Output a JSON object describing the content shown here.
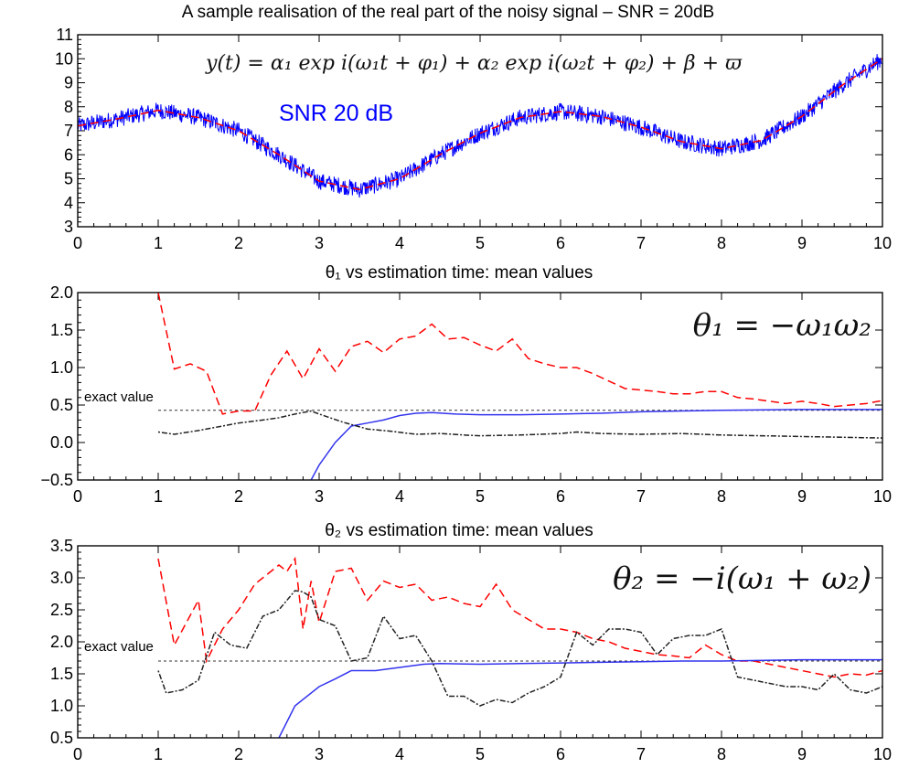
{
  "chart_data": [
    {
      "type": "line",
      "title": "A sample realisation of the real part of the noisy signal – SNR = 20dB",
      "formula": "y(t) = α₁ exp i(ω₁t + φ₁) + α₂ exp i(ω₂t + φ₂) + β + ϖ",
      "annotation": "SNR 20 dB",
      "xlim": [
        0,
        10
      ],
      "ylim": [
        3,
        11
      ],
      "xticks": [
        "0",
        "1",
        "2",
        "3",
        "4",
        "5",
        "6",
        "7",
        "8",
        "9",
        "10"
      ],
      "yticks": [
        "3",
        "4",
        "5",
        "6",
        "7",
        "8",
        "9",
        "10",
        "11"
      ],
      "noise_amplitude": 0.35,
      "series": [
        {
          "color": "#0000ff",
          "style": "solid-noisy",
          "x": [
            0,
            0.5,
            1.0,
            1.5,
            2.0,
            2.5,
            3.0,
            3.5,
            4.0,
            4.5,
            5.0,
            5.5,
            6.0,
            6.5,
            7.0,
            7.5,
            8.0,
            8.5,
            9.0,
            9.5,
            10.0
          ],
          "y": [
            7.2,
            7.5,
            7.85,
            7.55,
            7.0,
            6.0,
            4.9,
            4.55,
            5.0,
            6.0,
            6.9,
            7.55,
            7.8,
            7.6,
            7.15,
            6.55,
            6.25,
            6.6,
            7.6,
            8.9,
            10.0
          ]
        },
        {
          "color": "#ff0000",
          "style": "dashed",
          "x": [
            0,
            0.5,
            1.0,
            1.5,
            2.0,
            2.5,
            3.0,
            3.5,
            4.0,
            4.5,
            5.0,
            5.5,
            6.0,
            6.5,
            7.0,
            7.5,
            8.0,
            8.5,
            9.0,
            9.5,
            10.0
          ],
          "y": [
            7.2,
            7.5,
            7.85,
            7.55,
            7.0,
            6.0,
            4.9,
            4.55,
            5.0,
            6.0,
            6.9,
            7.55,
            7.8,
            7.6,
            7.15,
            6.55,
            6.25,
            6.6,
            7.6,
            8.9,
            10.0
          ]
        }
      ]
    },
    {
      "type": "line",
      "title": "θ₁ vs estimation time:  mean values",
      "formula": "θ₁ = −ω₁ω₂",
      "xlim": [
        0,
        10
      ],
      "ylim": [
        -0.5,
        2.0
      ],
      "xticks": [
        "0",
        "1",
        "2",
        "3",
        "4",
        "5",
        "6",
        "7",
        "8",
        "9",
        "10"
      ],
      "yticks": [
        "−0.5",
        "0.0",
        "0.5",
        "1.0",
        "1.5",
        "2.0"
      ],
      "exact_value": {
        "label": "exact value",
        "y": 0.43
      },
      "series": [
        {
          "color": "#ff0000",
          "style": "dashed",
          "x": [
            1.0,
            1.2,
            1.4,
            1.6,
            1.8,
            2.0,
            2.2,
            2.4,
            2.6,
            2.8,
            3.0,
            3.2,
            3.4,
            3.6,
            3.8,
            4.0,
            4.2,
            4.4,
            4.6,
            4.8,
            5.0,
            5.2,
            5.4,
            5.6,
            5.8,
            6.0,
            6.2,
            6.4,
            6.6,
            6.8,
            7.0,
            7.2,
            7.4,
            7.6,
            7.8,
            8.0,
            8.2,
            8.4,
            8.6,
            8.8,
            9.0,
            9.2,
            9.4,
            9.6,
            9.8,
            10.0
          ],
          "y": [
            2.0,
            0.98,
            1.05,
            0.95,
            0.38,
            0.42,
            0.42,
            0.9,
            1.22,
            0.85,
            1.25,
            0.95,
            1.28,
            1.35,
            1.2,
            1.38,
            1.42,
            1.58,
            1.38,
            1.4,
            1.3,
            1.22,
            1.38,
            1.12,
            1.05,
            1.0,
            1.0,
            0.92,
            0.82,
            0.72,
            0.7,
            0.68,
            0.65,
            0.65,
            0.68,
            0.68,
            0.6,
            0.58,
            0.55,
            0.52,
            0.55,
            0.52,
            0.48,
            0.5,
            0.52,
            0.56
          ]
        },
        {
          "color": "#3333ee",
          "style": "solid",
          "x": [
            2.9,
            3.0,
            3.2,
            3.4,
            3.6,
            3.8,
            4.0,
            4.2,
            4.4,
            4.7,
            5.0,
            5.5,
            6.0,
            6.5,
            7.0,
            7.5,
            8.0,
            9.0,
            10.0
          ],
          "y": [
            -0.5,
            -0.3,
            0.0,
            0.22,
            0.26,
            0.3,
            0.36,
            0.39,
            0.4,
            0.38,
            0.37,
            0.37,
            0.38,
            0.39,
            0.41,
            0.42,
            0.43,
            0.44,
            0.44
          ]
        },
        {
          "color": "#222222",
          "style": "dashdot",
          "x": [
            1.0,
            1.2,
            1.5,
            1.8,
            2.0,
            2.3,
            2.5,
            2.7,
            2.9,
            3.0,
            3.3,
            3.6,
            3.9,
            4.2,
            4.5,
            4.8,
            5.0,
            5.5,
            6.0,
            6.2,
            6.5,
            7.0,
            7.5,
            8.0,
            8.5,
            9.0,
            9.5,
            10.0
          ],
          "y": [
            0.14,
            0.11,
            0.16,
            0.22,
            0.26,
            0.3,
            0.33,
            0.38,
            0.42,
            0.38,
            0.27,
            0.18,
            0.15,
            0.11,
            0.12,
            0.1,
            0.09,
            0.1,
            0.12,
            0.14,
            0.12,
            0.11,
            0.12,
            0.1,
            0.09,
            0.08,
            0.07,
            0.06
          ]
        }
      ]
    },
    {
      "type": "line",
      "title": "θ₂ vs estimation time:  mean values",
      "formula": "θ₂ = −i(ω₁ + ω₂)",
      "xlim": [
        0,
        10
      ],
      "ylim": [
        0.5,
        3.5
      ],
      "xticks": [
        "0",
        "1",
        "2",
        "3",
        "4",
        "5",
        "6",
        "7",
        "8",
        "9",
        "10"
      ],
      "yticks": [
        "0.5",
        "1.0",
        "1.5",
        "2.0",
        "2.5",
        "3.0",
        "3.5"
      ],
      "exact_value": {
        "label": "exact value",
        "y": 1.7
      },
      "series": [
        {
          "color": "#ff0000",
          "style": "dashed",
          "x": [
            1.0,
            1.2,
            1.5,
            1.6,
            1.8,
            2.0,
            2.2,
            2.5,
            2.6,
            2.7,
            2.8,
            2.9,
            3.0,
            3.2,
            3.4,
            3.6,
            3.8,
            4.0,
            4.2,
            4.4,
            4.6,
            4.8,
            5.0,
            5.2,
            5.4,
            5.6,
            5.8,
            6.0,
            6.2,
            6.4,
            6.6,
            6.8,
            7.0,
            7.2,
            7.4,
            7.6,
            7.8,
            8.0,
            8.2,
            8.4,
            8.6,
            8.8,
            9.0,
            9.2,
            9.4,
            9.6,
            9.8,
            10.0
          ],
          "y": [
            3.3,
            1.95,
            2.65,
            1.7,
            2.2,
            2.5,
            2.9,
            3.2,
            3.1,
            3.3,
            2.2,
            2.95,
            2.3,
            3.1,
            3.15,
            2.65,
            2.95,
            2.85,
            2.9,
            2.65,
            2.7,
            2.6,
            2.55,
            2.9,
            2.5,
            2.35,
            2.2,
            2.2,
            2.15,
            2.05,
            2.0,
            1.9,
            1.85,
            1.8,
            1.78,
            1.75,
            1.95,
            1.8,
            1.7,
            1.7,
            1.65,
            1.6,
            1.55,
            1.5,
            1.45,
            1.5,
            1.48,
            1.55
          ]
        },
        {
          "color": "#3333ee",
          "style": "solid",
          "x": [
            2.5,
            2.7,
            3.0,
            3.2,
            3.4,
            3.7,
            4.0,
            4.3,
            4.5,
            5.0,
            5.5,
            6.0,
            6.5,
            7.0,
            7.5,
            8.0,
            9.0,
            10.0
          ],
          "y": [
            0.5,
            1.0,
            1.3,
            1.42,
            1.55,
            1.55,
            1.6,
            1.65,
            1.66,
            1.65,
            1.66,
            1.67,
            1.68,
            1.69,
            1.7,
            1.7,
            1.72,
            1.72
          ],
          "clip_below": 0.5
        },
        {
          "color": "#222222",
          "style": "dashdot",
          "x": [
            1.0,
            1.1,
            1.3,
            1.5,
            1.7,
            1.9,
            2.1,
            2.3,
            2.5,
            2.7,
            2.8,
            2.9,
            3.0,
            3.2,
            3.4,
            3.6,
            3.8,
            4.0,
            4.2,
            4.4,
            4.6,
            4.8,
            5.0,
            5.2,
            5.4,
            5.6,
            5.8,
            6.0,
            6.2,
            6.4,
            6.6,
            6.8,
            7.0,
            7.2,
            7.4,
            7.6,
            7.8,
            8.0,
            8.2,
            8.4,
            8.6,
            8.8,
            9.0,
            9.2,
            9.4,
            9.6,
            9.8,
            10.0
          ],
          "y": [
            1.55,
            1.2,
            1.25,
            1.4,
            2.15,
            1.95,
            1.9,
            2.4,
            2.5,
            2.8,
            2.78,
            2.7,
            2.35,
            2.25,
            1.7,
            1.75,
            2.4,
            2.05,
            2.1,
            1.7,
            1.15,
            1.15,
            1.0,
            1.1,
            1.05,
            1.2,
            1.3,
            1.45,
            2.15,
            1.95,
            2.2,
            2.2,
            2.15,
            1.8,
            2.05,
            2.1,
            2.1,
            2.2,
            1.45,
            1.4,
            1.35,
            1.3,
            1.3,
            1.25,
            1.5,
            1.25,
            1.2,
            1.3
          ]
        }
      ]
    }
  ]
}
